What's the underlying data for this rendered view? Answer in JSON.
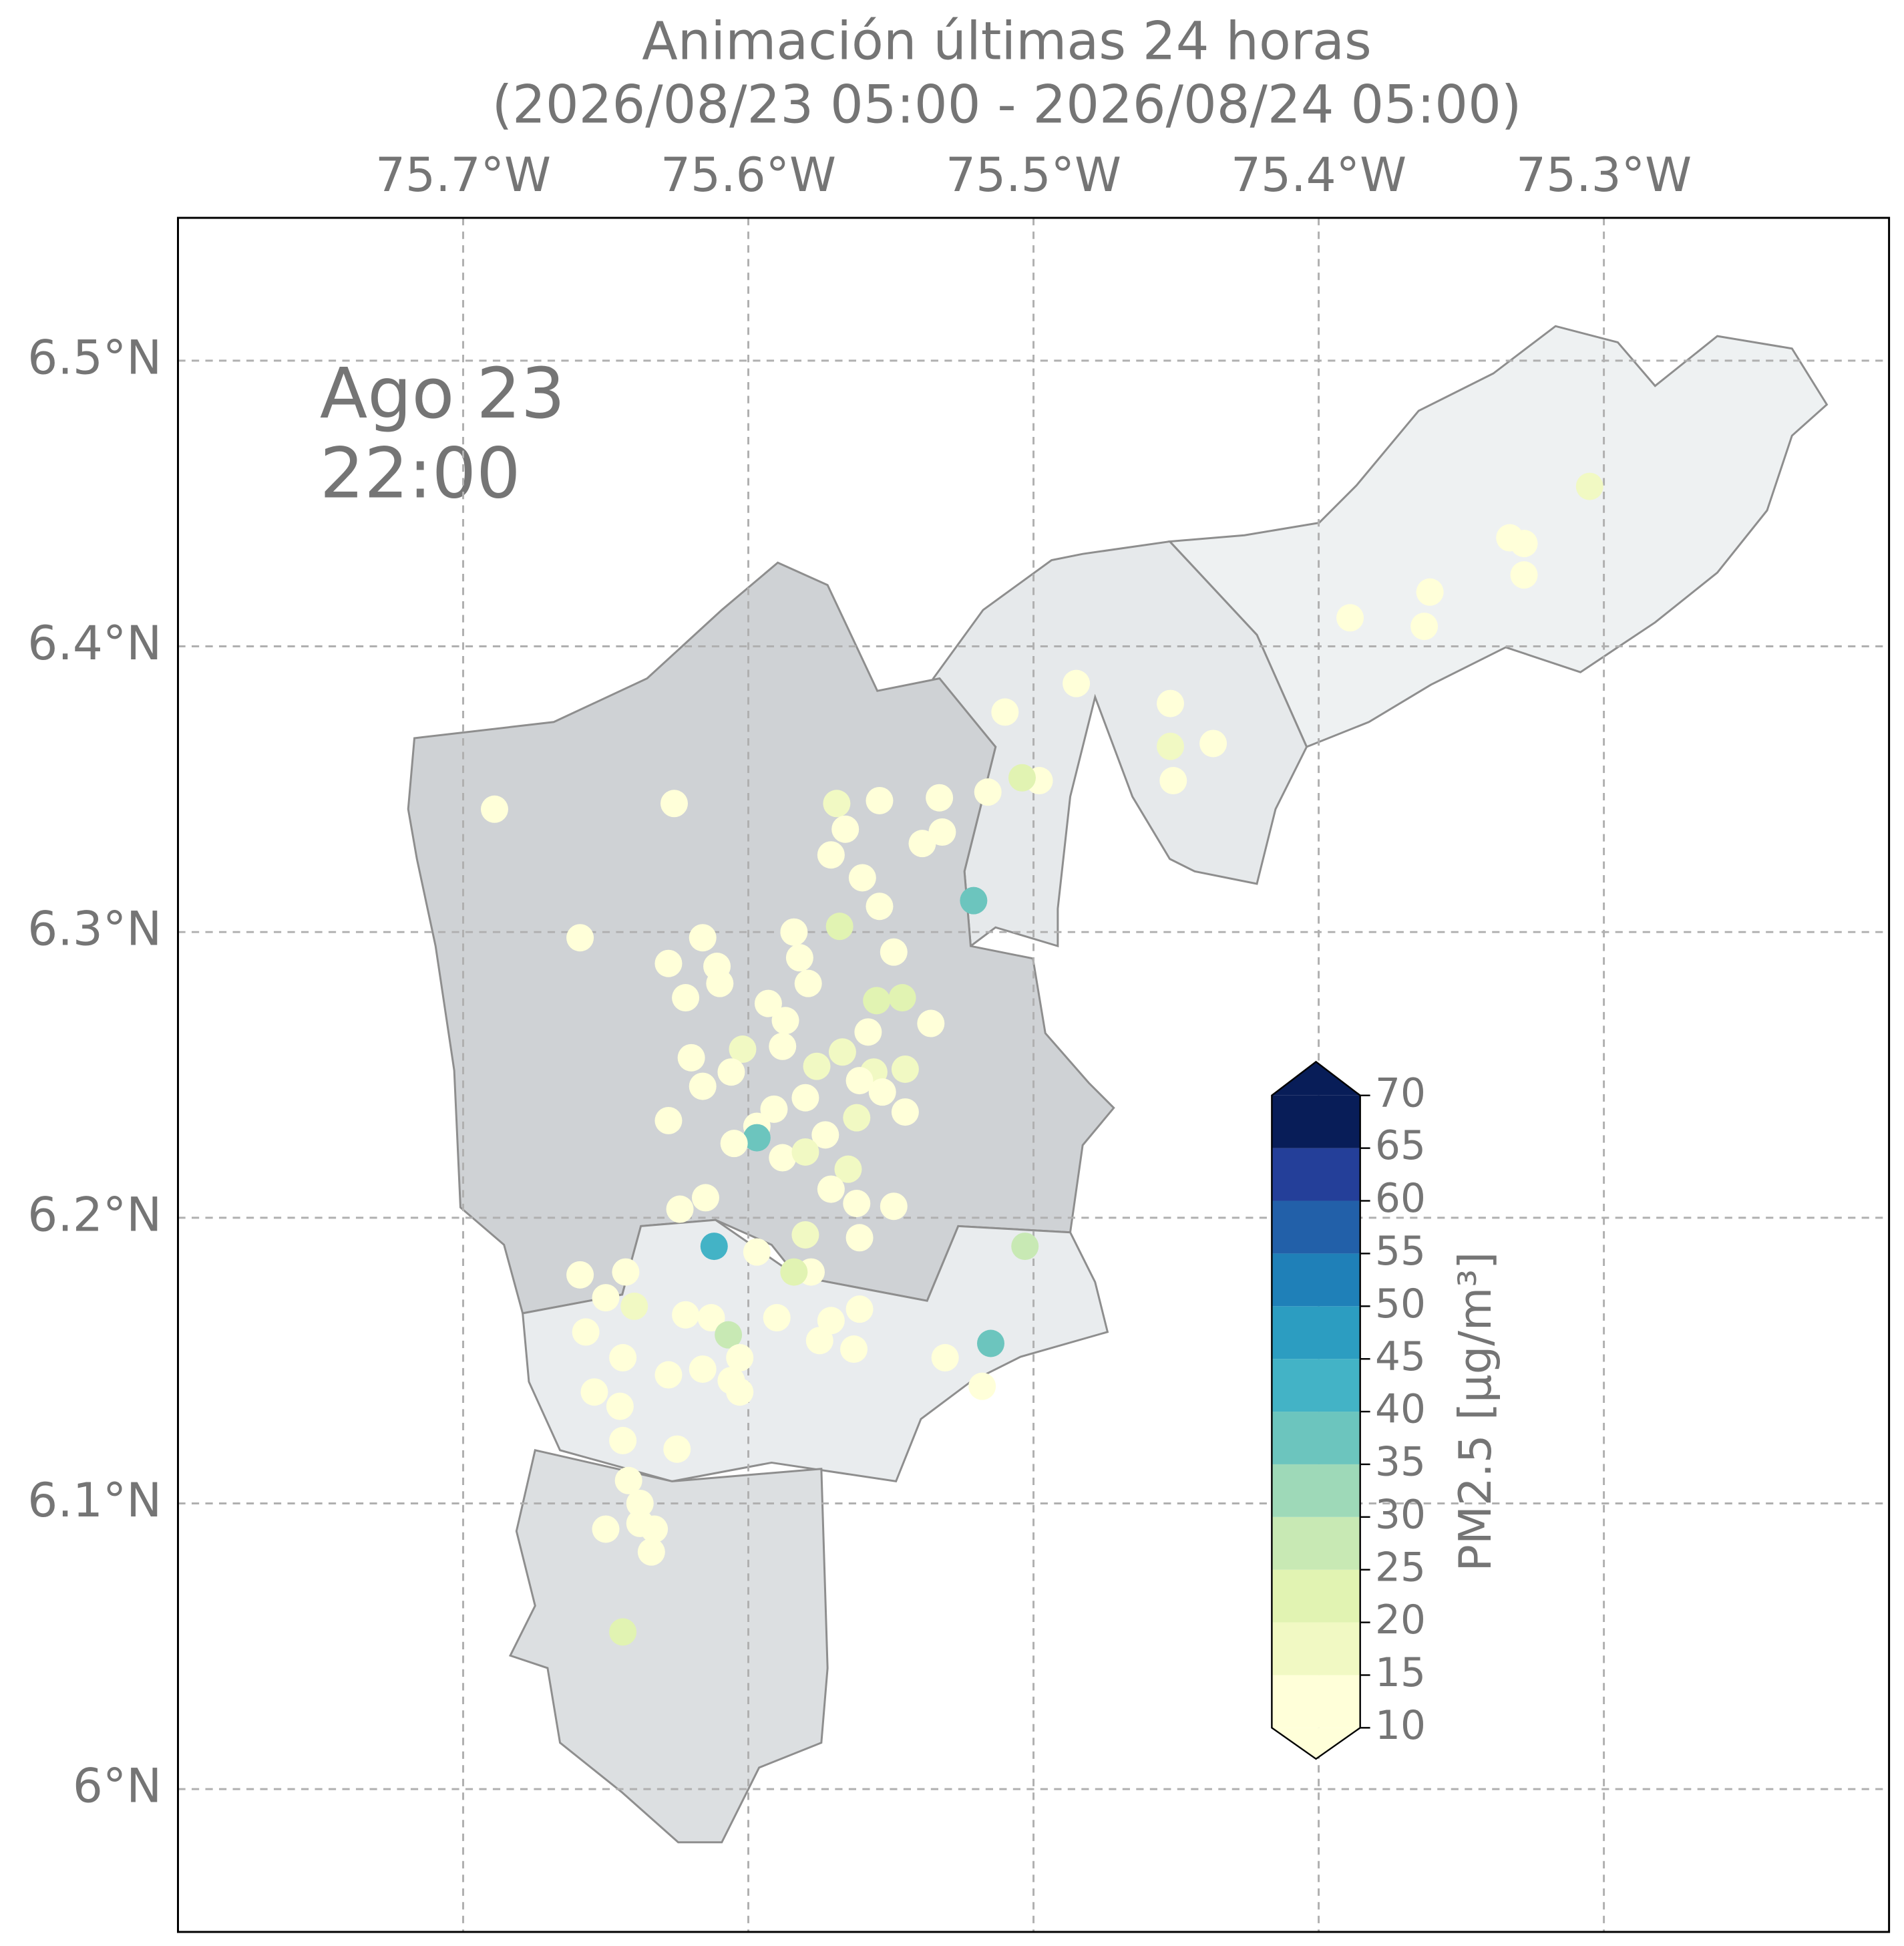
{
  "chart_data": {
    "type": "scatter",
    "title": "Animación últimas 24 horas",
    "subtitle": "(2026/08/23 05:00 - 2026/08/24 05:00)",
    "annotation": [
      "Ago 23",
      "22:00"
    ],
    "xlim": [
      -75.8,
      -75.2
    ],
    "ylim": [
      5.95,
      6.55
    ],
    "xticks": [
      {
        "value": -75.7,
        "label": "75.7°W"
      },
      {
        "value": -75.6,
        "label": "75.6°W"
      },
      {
        "value": -75.5,
        "label": "75.5°W"
      },
      {
        "value": -75.4,
        "label": "75.4°W"
      },
      {
        "value": -75.3,
        "label": "75.3°W"
      }
    ],
    "yticks": [
      {
        "value": 6.0,
        "label": "6°N"
      },
      {
        "value": 6.1,
        "label": "6.1°N"
      },
      {
        "value": 6.2,
        "label": "6.2°N"
      },
      {
        "value": 6.3,
        "label": "6.3°N"
      },
      {
        "value": 6.4,
        "label": "6.4°N"
      },
      {
        "value": 6.5,
        "label": "6.5°N"
      }
    ],
    "grid": true,
    "x": [
      -75.689,
      -75.626,
      -75.659,
      -75.521,
      -75.51,
      -75.485,
      -75.452,
      -75.437,
      -75.451,
      -75.452,
      -75.389,
      -75.363,
      -75.361,
      -75.333,
      -75.328,
      -75.328,
      -75.305,
      -75.498,
      -75.504,
      -75.516,
      -75.533,
      -75.532,
      -75.539,
      -75.569,
      -75.554,
      -75.566,
      -75.571,
      -75.56,
      -75.554,
      -75.568,
      -75.584,
      -75.549,
      -75.582,
      -75.616,
      -75.628,
      -75.611,
      -75.61,
      -75.622,
      -75.546,
      -75.555,
      -75.579,
      -75.593,
      -75.587,
      -75.536,
      -75.558,
      -75.602,
      -75.588,
      -75.62,
      -75.567,
      -75.576,
      -75.606,
      -75.545,
      -75.556,
      -75.616,
      -75.561,
      -75.58,
      -75.553,
      -75.591,
      -75.545,
      -75.628,
      -75.562,
      -75.597,
      -75.597,
      -75.573,
      -75.605,
      -75.588,
      -75.58,
      -75.565,
      -75.571,
      -75.562,
      -75.615,
      -75.624,
      -75.549,
      -75.58,
      -75.561,
      -75.503,
      -75.612,
      -75.597,
      -75.643,
      -75.659,
      -75.578,
      -75.584,
      -75.65,
      -75.64,
      -75.622,
      -75.613,
      -75.59,
      -75.571,
      -75.561,
      -75.657,
      -75.607,
      -75.575,
      -75.563,
      -75.515,
      -75.531,
      -75.644,
      -75.603,
      -75.628,
      -75.616,
      -75.606,
      -75.518,
      -75.654,
      -75.603,
      -75.645,
      -75.644,
      -75.625,
      -75.642,
      -75.638,
      -75.65,
      -75.633,
      -75.638,
      -75.634,
      -75.644
    ],
    "y": [
      6.343,
      6.345,
      6.298,
      6.311,
      6.377,
      6.387,
      6.38,
      6.366,
      6.353,
      6.365,
      6.41,
      6.407,
      6.419,
      6.438,
      6.425,
      6.436,
      6.456,
      6.353,
      6.354,
      6.349,
      6.347,
      6.335,
      6.331,
      6.345,
      6.346,
      6.336,
      6.327,
      6.319,
      6.309,
      6.302,
      6.3,
      6.293,
      6.291,
      6.298,
      6.289,
      6.288,
      6.282,
      6.277,
      6.277,
      6.276,
      6.282,
      6.275,
      6.269,
      6.268,
      6.265,
      6.259,
      6.26,
      6.256,
      6.258,
      6.253,
      6.251,
      6.252,
      6.251,
      6.246,
      6.248,
      6.242,
      6.244,
      6.238,
      6.237,
      6.234,
      6.235,
      6.232,
      6.228,
      6.229,
      6.226,
      6.221,
      6.223,
      6.217,
      6.21,
      6.205,
      6.207,
      6.203,
      6.204,
      6.194,
      6.193,
      6.19,
      6.19,
      6.188,
      6.181,
      6.18,
      6.181,
      6.181,
      6.172,
      6.169,
      6.166,
      6.165,
      6.165,
      6.164,
      6.168,
      6.16,
      6.159,
      6.157,
      6.154,
      6.156,
      6.151,
      6.151,
      6.151,
      6.145,
      6.147,
      6.143,
      6.141,
      6.139,
      6.139,
      6.134,
      6.122,
      6.119,
      6.108,
      6.1,
      6.091,
      6.091,
      6.093,
      6.083,
      6.055
    ],
    "values": [
      12,
      12,
      11,
      38,
      11,
      11,
      14,
      14,
      14,
      17,
      12,
      12,
      12,
      12,
      14,
      12,
      16,
      12,
      20,
      12,
      12,
      12,
      12,
      17,
      12,
      14,
      14,
      12,
      12,
      21,
      11,
      12,
      12,
      12,
      12,
      12,
      12,
      14,
      22,
      20,
      12,
      12,
      12,
      12,
      12,
      16,
      12,
      14,
      17,
      17,
      12,
      16,
      17,
      14,
      12,
      12,
      12,
      12,
      12,
      12,
      16,
      12,
      38,
      12,
      12,
      12,
      17,
      17,
      12,
      12,
      12,
      14,
      12,
      17,
      12,
      26,
      40,
      12,
      12,
      12,
      12,
      22,
      12,
      17,
      12,
      14,
      12,
      12,
      12,
      12,
      26,
      12,
      14,
      38,
      14,
      14,
      12,
      14,
      12,
      12,
      14,
      12,
      12,
      12,
      12,
      12,
      14,
      12,
      12,
      12,
      14,
      12,
      24
    ],
    "colorbar": {
      "label": "PM2.5 [μg/m³]",
      "ticks": [
        10,
        15,
        20,
        25,
        30,
        35,
        40,
        45,
        50,
        55,
        60,
        65,
        70
      ],
      "colors": [
        "#ffffd9",
        "#f1f9c3",
        "#e1f3b2",
        "#c8e9b4",
        "#9ed9b8",
        "#6cc5be",
        "#43b3c6",
        "#2c9dc1",
        "#1f80b8",
        "#2260a9",
        "#243f99",
        "#081d58"
      ]
    }
  }
}
